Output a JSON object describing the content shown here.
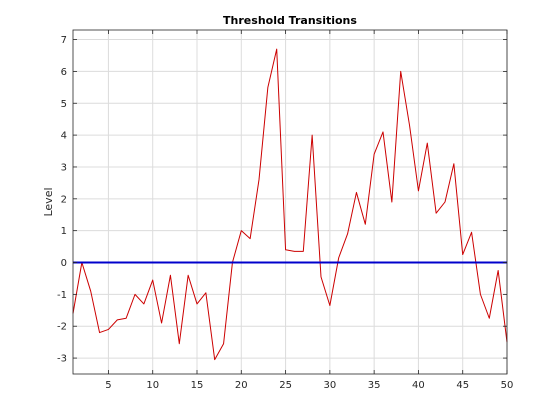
{
  "chart_data": {
    "type": "line",
    "title": "Threshold Transitions",
    "xlabel": "",
    "ylabel": "Level",
    "xlim": [
      1,
      50
    ],
    "ylim": [
      -3.5,
      7.3
    ],
    "xticks": [
      5,
      10,
      15,
      20,
      25,
      30,
      35,
      40,
      45,
      50
    ],
    "yticks": [
      -3,
      -2,
      -1,
      0,
      1,
      2,
      3,
      4,
      5,
      6,
      7
    ],
    "grid": true,
    "series": [
      {
        "color": "#cc0000",
        "x": [
          1,
          2,
          3,
          4,
          5,
          6,
          7,
          8,
          9,
          10,
          11,
          12,
          13,
          14,
          15,
          16,
          17,
          18,
          19,
          20,
          21,
          22,
          23,
          24,
          25,
          26,
          27,
          28,
          29,
          30,
          31,
          32,
          33,
          34,
          35,
          36,
          37,
          38,
          39,
          40,
          41,
          42,
          43,
          44,
          45,
          46,
          47,
          48,
          49,
          50
        ],
        "y": [
          -1.6,
          0.0,
          -0.9,
          -2.2,
          -2.1,
          -1.8,
          -1.75,
          -1.0,
          -1.3,
          -0.55,
          -1.9,
          -0.4,
          -2.55,
          -0.4,
          -1.3,
          -0.95,
          -3.05,
          -2.55,
          0.0,
          1.0,
          0.75,
          2.6,
          5.5,
          6.7,
          0.4,
          0.35,
          0.35,
          4.0,
          -0.45,
          -1.35,
          0.15,
          0.9,
          2.2,
          1.2,
          3.4,
          4.1,
          1.9,
          6.0,
          4.3,
          2.25,
          3.75,
          1.55,
          1.9,
          3.1,
          0.25,
          0.95,
          -1.0,
          -1.75,
          -0.25,
          -2.5
        ]
      },
      {
        "color": "#0000cc",
        "x": [
          1,
          50
        ],
        "y": [
          0,
          0
        ]
      }
    ]
  }
}
